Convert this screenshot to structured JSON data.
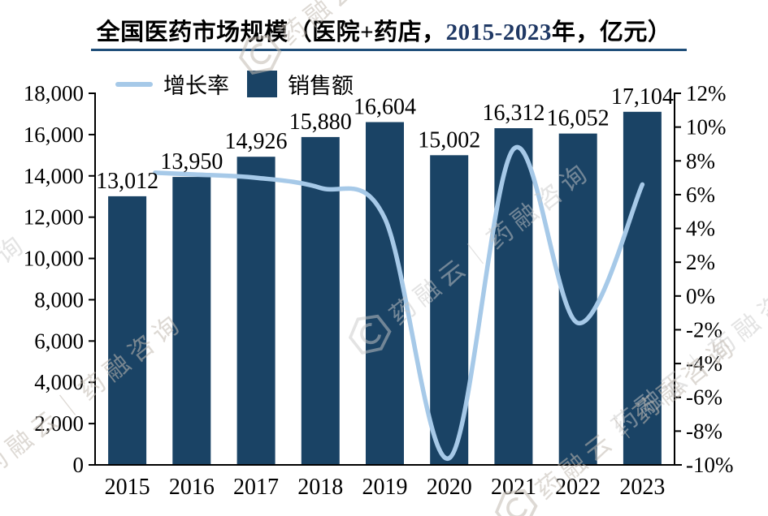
{
  "title": {
    "prefix": "全国医药市场规模（医院+药店，",
    "range": "2015-2023",
    "suffix": "年，亿元）"
  },
  "legend": {
    "items": [
      {
        "label": "增长率",
        "type": "line",
        "color": "#A6C9E8"
      },
      {
        "label": "销售额",
        "type": "bar",
        "color": "#1A4365"
      }
    ]
  },
  "watermark": {
    "text": "药融云｜药融咨询",
    "brand": "药融云｜"
  },
  "colors": {
    "bar": "#1A4365",
    "line": "#A6C9E8",
    "title_rule": "#1F4E79",
    "title_range": "#1F3864",
    "axis": "#000000"
  },
  "chart_data": {
    "type": "bar+line combo",
    "title": "全国医药市场规模（医院+药店，2015-2023年，亿元）",
    "legend_position": "top",
    "grid": false,
    "categories": [
      "2015",
      "2016",
      "2017",
      "2018",
      "2019",
      "2020",
      "2021",
      "2022",
      "2023"
    ],
    "series": [
      {
        "name": "销售额",
        "type": "bar",
        "axis": "left",
        "color": "#1A4365",
        "values": [
          13012,
          13950,
          14926,
          15880,
          16604,
          15002,
          16312,
          16052,
          17104
        ],
        "value_labels": [
          "13,012",
          "13,950",
          "14,926",
          "15,880",
          "16,604",
          "15,002",
          "16,312",
          "16,052",
          "17,104"
        ]
      },
      {
        "name": "增长率",
        "type": "line",
        "axis": "right",
        "color": "#A6C9E8",
        "values": [
          null,
          7.2,
          7.0,
          6.4,
          4.6,
          -9.6,
          8.7,
          -1.6,
          6.6
        ]
      }
    ],
    "left_axis": {
      "min": 0,
      "max": 18000,
      "step": 2000,
      "tick_labels": [
        "18,000",
        "16,000",
        "14,000",
        "12,000",
        "10,000",
        "8,000",
        "6,000",
        "4,000",
        "2,000",
        "0"
      ]
    },
    "right_axis": {
      "min": -10,
      "max": 12,
      "step": 2,
      "tick_labels": [
        "12%",
        "10%",
        "8%",
        "6%",
        "4%",
        "2%",
        "0%",
        "-2%",
        "-4%",
        "-6%",
        "-8%",
        "-10%"
      ]
    }
  }
}
